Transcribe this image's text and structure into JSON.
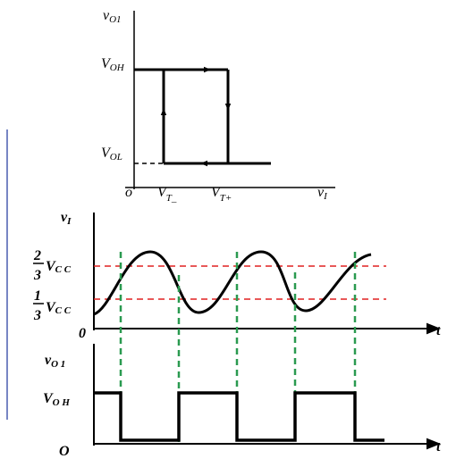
{
  "hysteresis": {
    "y_axis": {
      "main": "v",
      "sub": "O1"
    },
    "high": {
      "main": "V",
      "sub": "OH"
    },
    "low": {
      "main": "V",
      "sub": "OL"
    },
    "origin": "o",
    "threshold_low": {
      "main": "V",
      "sub": "T_"
    },
    "threshold_high": {
      "main": "V",
      "sub": "T+"
    },
    "x_axis": {
      "main": "v",
      "sub": "I"
    }
  },
  "input_wave": {
    "y_axis": {
      "main": "v",
      "sub": "I"
    },
    "upper_level": {
      "num": "2",
      "den": "3",
      "main": "V",
      "sub": "C C"
    },
    "lower_level": {
      "num": "1",
      "den": "3",
      "main": "V",
      "sub": "C C"
    },
    "origin": "0",
    "x_axis": "t"
  },
  "output_wave": {
    "y_axis": {
      "main": "v",
      "sub": "O 1"
    },
    "high": {
      "main": "V",
      "sub": "O H"
    },
    "origin": "O",
    "x_axis": "t"
  }
}
